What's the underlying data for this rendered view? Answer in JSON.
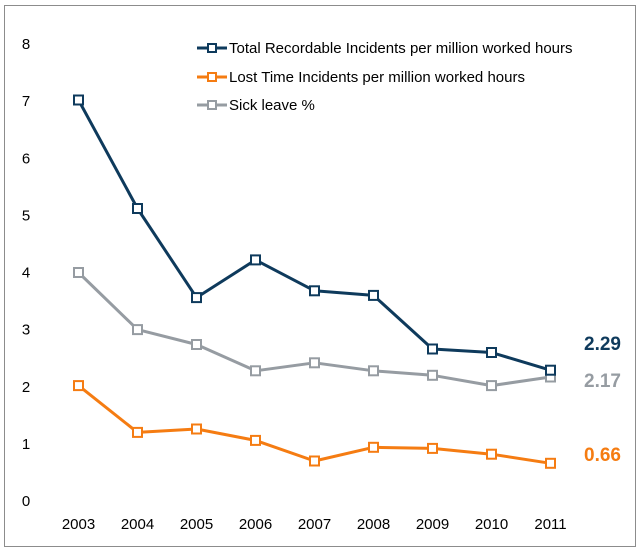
{
  "chart_data": {
    "type": "line",
    "title": "",
    "xlabel": "",
    "ylabel": "",
    "categories": [
      "2003",
      "2004",
      "2005",
      "2006",
      "2007",
      "2008",
      "2009",
      "2010",
      "2011"
    ],
    "ylim": [
      0,
      8
    ],
    "yticks": [
      "0",
      "1",
      "2",
      "3",
      "4",
      "5",
      "6",
      "7",
      "8"
    ],
    "grid": false,
    "legend_position": "top-right",
    "series": [
      {
        "name": "Total Recordable Incidents per million worked hours",
        "color": "#0e3a5c",
        "values": [
          7.02,
          5.12,
          3.56,
          4.22,
          3.68,
          3.6,
          2.66,
          2.6,
          2.29
        ],
        "end_label": "2.29"
      },
      {
        "name": "Lost Time Incidents per million worked hours",
        "color": "#f57c12",
        "values": [
          2.02,
          1.2,
          1.26,
          1.06,
          0.7,
          0.94,
          0.92,
          0.82,
          0.66
        ],
        "end_label": "0.66"
      },
      {
        "name": "Sick leave %",
        "color": "#969ca2",
        "values": [
          4.0,
          3.0,
          2.74,
          2.28,
          2.42,
          2.28,
          2.2,
          2.02,
          2.17
        ],
        "end_label": "2.17"
      }
    ]
  }
}
